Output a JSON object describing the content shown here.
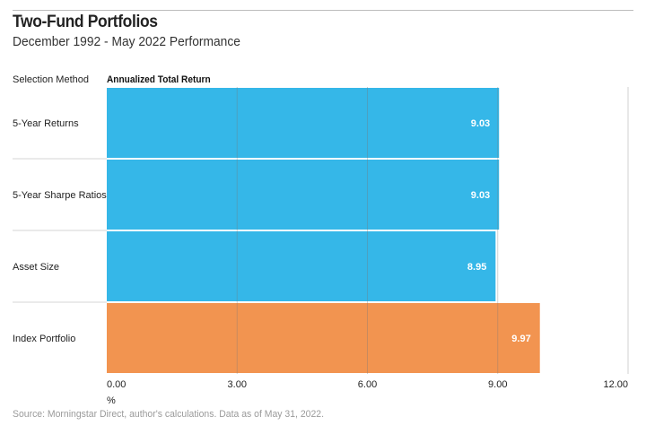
{
  "header": {
    "title": "Two-Fund Portfolios",
    "subtitle": "December 1992 - May 2022 Performance"
  },
  "columns": {
    "method": "Selection Method",
    "measure": "Annualized Total Return"
  },
  "source": "Source: Morningstar Direct, author's calculations. Data as of May 31, 2022.",
  "colors": {
    "blue": "#35b7e8",
    "orange": "#f29450",
    "grid": "#cfcfcf"
  },
  "chart_data": {
    "type": "bar",
    "orientation": "horizontal",
    "categories": [
      "5-Year Returns",
      "5-Year Sharpe Ratios",
      "Asset Size",
      "Index Portfolio"
    ],
    "values": [
      9.03,
      9.03,
      8.95,
      9.97
    ],
    "value_labels": [
      "9.03",
      "9.03",
      "8.95",
      "9.97"
    ],
    "bar_colors": [
      "#35b7e8",
      "#35b7e8",
      "#35b7e8",
      "#f29450"
    ],
    "xlim": [
      0,
      12
    ],
    "xticks": [
      0,
      3,
      6,
      9,
      12
    ],
    "xtick_labels": [
      "0.00",
      "3.00",
      "6.00",
      "9.00",
      "12.00"
    ],
    "xlabel": "%",
    "grid": true
  }
}
